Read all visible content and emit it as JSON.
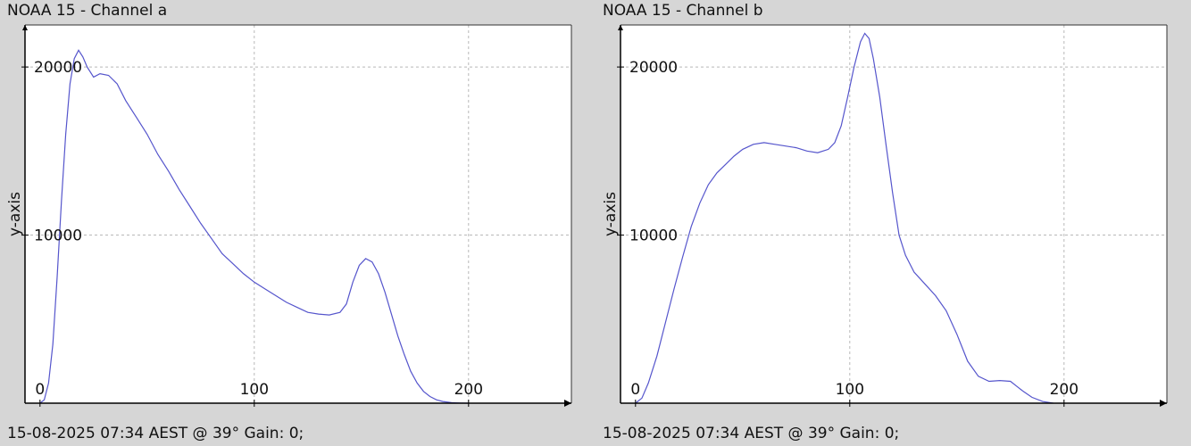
{
  "chart_data": [
    {
      "type": "line",
      "title": "NOAA 15 - Channel a",
      "ylabel": "y-axis",
      "xlabel": "",
      "footer": "15-08-2025 07:34 AEST @ 39° Gain: 0;",
      "xlim": [
        -7,
        248
      ],
      "ylim": [
        0,
        22500
      ],
      "x_ticks": [
        0,
        100,
        200
      ],
      "y_ticks": [
        10000,
        20000
      ],
      "grid": true,
      "series": [
        {
          "color": "#5555cc",
          "x": [
            0,
            2,
            4,
            6,
            8,
            10,
            12,
            14,
            16,
            18,
            20,
            22,
            25,
            28,
            32,
            36,
            40,
            45,
            50,
            55,
            60,
            65,
            70,
            75,
            80,
            85,
            90,
            95,
            100,
            105,
            110,
            115,
            120,
            125,
            130,
            135,
            140,
            143,
            146,
            149,
            152,
            155,
            158,
            161,
            164,
            167,
            170,
            173,
            176,
            179,
            182,
            185,
            188,
            192,
            196,
            200
          ],
          "y": [
            0,
            200,
            1200,
            3500,
            7500,
            12000,
            16000,
            19000,
            20500,
            21000,
            20600,
            20000,
            19400,
            19600,
            19500,
            19000,
            18000,
            17000,
            16000,
            14800,
            13800,
            12700,
            11700,
            10700,
            9800,
            8900,
            8300,
            7700,
            7200,
            6800,
            6400,
            6000,
            5700,
            5400,
            5300,
            5250,
            5400,
            5900,
            7200,
            8200,
            8600,
            8400,
            7700,
            6600,
            5300,
            4000,
            2900,
            1900,
            1200,
            700,
            400,
            200,
            100,
            30,
            10,
            0
          ]
        }
      ]
    },
    {
      "type": "line",
      "title": "NOAA 15 - Channel b",
      "ylabel": "y-axis",
      "xlabel": "",
      "footer": "15-08-2025 07:34 AEST @ 39° Gain: 0;",
      "xlim": [
        -7,
        248
      ],
      "ylim": [
        0,
        22500
      ],
      "x_ticks": [
        0,
        100,
        200
      ],
      "y_ticks": [
        10000,
        20000
      ],
      "grid": true,
      "series": [
        {
          "color": "#5555cc",
          "x": [
            0,
            3,
            6,
            10,
            14,
            18,
            22,
            26,
            30,
            34,
            38,
            42,
            46,
            50,
            55,
            60,
            65,
            70,
            75,
            80,
            85,
            90,
            93,
            96,
            99,
            102,
            105,
            107,
            109,
            111,
            114,
            117,
            120,
            123,
            126,
            130,
            135,
            140,
            145,
            150,
            155,
            160,
            165,
            170,
            175,
            178,
            181,
            185,
            190,
            195
          ],
          "y": [
            0,
            300,
            1200,
            2800,
            4800,
            6800,
            8700,
            10500,
            11900,
            13000,
            13700,
            14200,
            14700,
            15100,
            15400,
            15500,
            15400,
            15300,
            15200,
            15000,
            14900,
            15100,
            15500,
            16500,
            18200,
            20000,
            21500,
            22000,
            21700,
            20500,
            18200,
            15300,
            12500,
            10000,
            8800,
            7800,
            7100,
            6400,
            5500,
            4100,
            2500,
            1600,
            1300,
            1350,
            1300,
            1000,
            700,
            350,
            100,
            0
          ]
        }
      ]
    }
  ]
}
